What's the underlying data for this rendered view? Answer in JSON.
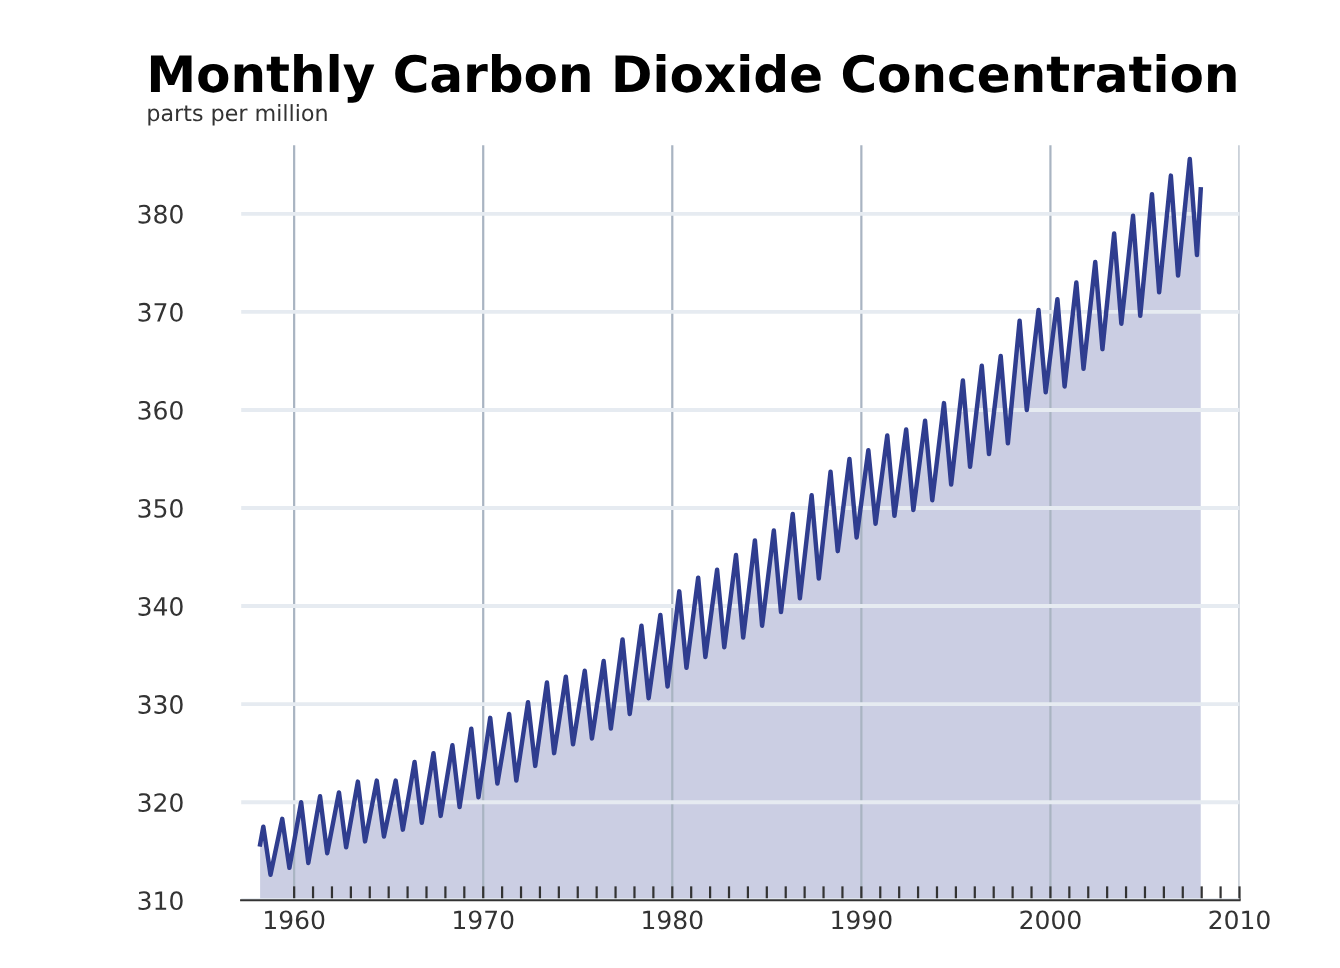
{
  "chart_data": {
    "type": "area",
    "title": "Monthly Carbon Dioxide Concentration",
    "ylabel": "parts per million",
    "series": [
      {
        "color": "#2f3d8f",
        "x": [
          1958.2,
          1958.37,
          1958.75,
          1959.37,
          1959.75,
          1960.37,
          1960.75,
          1961.37,
          1961.75,
          1962.37,
          1962.75,
          1963.37,
          1963.75,
          1964.37,
          1964.75,
          1965.37,
          1965.75,
          1966.37,
          1966.75,
          1967.37,
          1967.75,
          1968.37,
          1968.75,
          1969.37,
          1969.75,
          1970.37,
          1970.75,
          1971.37,
          1971.75,
          1972.37,
          1972.75,
          1973.37,
          1973.75,
          1974.37,
          1974.75,
          1975.37,
          1975.75,
          1976.37,
          1976.75,
          1977.37,
          1977.75,
          1978.37,
          1978.75,
          1979.37,
          1979.75,
          1980.37,
          1980.75,
          1981.37,
          1981.75,
          1982.37,
          1982.75,
          1983.37,
          1983.75,
          1984.37,
          1984.75,
          1985.37,
          1985.75,
          1986.37,
          1986.75,
          1987.37,
          1987.75,
          1988.37,
          1988.75,
          1989.37,
          1989.75,
          1990.37,
          1990.75,
          1991.37,
          1991.75,
          1992.37,
          1992.75,
          1993.37,
          1993.75,
          1994.37,
          1994.75,
          1995.37,
          1995.75,
          1996.37,
          1996.75,
          1997.37,
          1997.75,
          1998.37,
          1998.75,
          1999.37,
          1999.75,
          2000.37,
          2000.75,
          2001.37,
          2001.75,
          2002.37,
          2002.75,
          2003.37,
          2003.75,
          2004.37,
          2004.75,
          2005.37,
          2005.75,
          2006.37,
          2006.75,
          2007.37,
          2007.75,
          2007.95
        ],
        "values": [
          315.7,
          317.5,
          312.6,
          318.3,
          313.3,
          320.0,
          313.8,
          320.6,
          314.8,
          321.0,
          315.4,
          322.1,
          316.0,
          322.2,
          316.5,
          322.2,
          317.2,
          324.1,
          317.9,
          325.0,
          318.6,
          325.8,
          319.5,
          327.5,
          320.5,
          328.6,
          321.9,
          329.0,
          322.2,
          330.2,
          323.7,
          332.2,
          325.0,
          332.8,
          325.9,
          333.4,
          326.5,
          334.4,
          327.5,
          336.6,
          329.0,
          338.0,
          330.6,
          339.1,
          331.8,
          341.5,
          333.7,
          342.9,
          334.8,
          343.7,
          335.8,
          345.2,
          336.8,
          346.7,
          338.0,
          347.7,
          339.4,
          349.4,
          340.8,
          351.3,
          342.8,
          353.7,
          345.6,
          355.0,
          347.0,
          355.9,
          348.4,
          357.4,
          349.2,
          358.0,
          349.8,
          358.9,
          350.8,
          360.7,
          352.4,
          363.0,
          354.2,
          364.5,
          355.5,
          365.5,
          356.6,
          369.1,
          360.0,
          370.2,
          361.8,
          371.3,
          362.4,
          373.0,
          364.2,
          375.1,
          366.2,
          378.0,
          368.8,
          379.8,
          369.6,
          382.0,
          372.0,
          383.9,
          373.7,
          385.6,
          375.8,
          382.5
        ]
      }
    ],
    "xlim": [
      1957.2,
      2010
    ],
    "ylim": [
      310,
      387
    ],
    "xticks": [
      1960,
      {
        "value": 1961,
        "label": null
      },
      {
        "value": 1962,
        "label": null
      },
      {
        "value": 1963,
        "label": null
      },
      {
        "value": 1964,
        "label": null
      },
      {
        "value": 1965,
        "label": null
      },
      {
        "value": 1966,
        "label": null
      },
      {
        "value": 1967,
        "label": null
      },
      {
        "value": 1968,
        "label": null
      },
      {
        "value": 1969,
        "label": null
      },
      1970,
      {
        "value": 1971,
        "label": null
      },
      {
        "value": 1972,
        "label": null
      },
      {
        "value": 1973,
        "label": null
      },
      {
        "value": 1974,
        "label": null
      },
      {
        "value": 1975,
        "label": null
      },
      {
        "value": 1976,
        "label": null
      },
      {
        "value": 1977,
        "label": null
      },
      {
        "value": 1978,
        "label": null
      },
      {
        "value": 1979,
        "label": null
      },
      1980,
      {
        "value": 1981,
        "label": null
      },
      {
        "value": 1982,
        "label": null
      },
      {
        "value": 1983,
        "label": null
      },
      {
        "value": 1984,
        "label": null
      },
      {
        "value": 1985,
        "label": null
      },
      {
        "value": 1986,
        "label": null
      },
      {
        "value": 1987,
        "label": null
      },
      {
        "value": 1988,
        "label": null
      },
      {
        "value": 1989,
        "label": null
      },
      1990,
      {
        "value": 1991,
        "label": null
      },
      {
        "value": 1992,
        "label": null
      },
      {
        "value": 1993,
        "label": null
      },
      {
        "value": 1994,
        "label": null
      },
      {
        "value": 1995,
        "label": null
      },
      {
        "value": 1996,
        "label": null
      },
      {
        "value": 1997,
        "label": null
      },
      {
        "value": 1998,
        "label": null
      },
      {
        "value": 1999,
        "label": null
      },
      2000,
      {
        "value": 2001,
        "label": null
      },
      {
        "value": 2002,
        "label": null
      },
      {
        "value": 2003,
        "label": null
      },
      {
        "value": 2004,
        "label": null
      },
      {
        "value": 2005,
        "label": null
      },
      {
        "value": 2006,
        "label": null
      },
      {
        "value": 2007,
        "label": null
      },
      {
        "value": 2008,
        "label": null
      },
      {
        "value": 2009,
        "label": null
      },
      2010
    ],
    "yticks": [
      310,
      320,
      330,
      340,
      350,
      360,
      370,
      380
    ],
    "grid": true
  }
}
